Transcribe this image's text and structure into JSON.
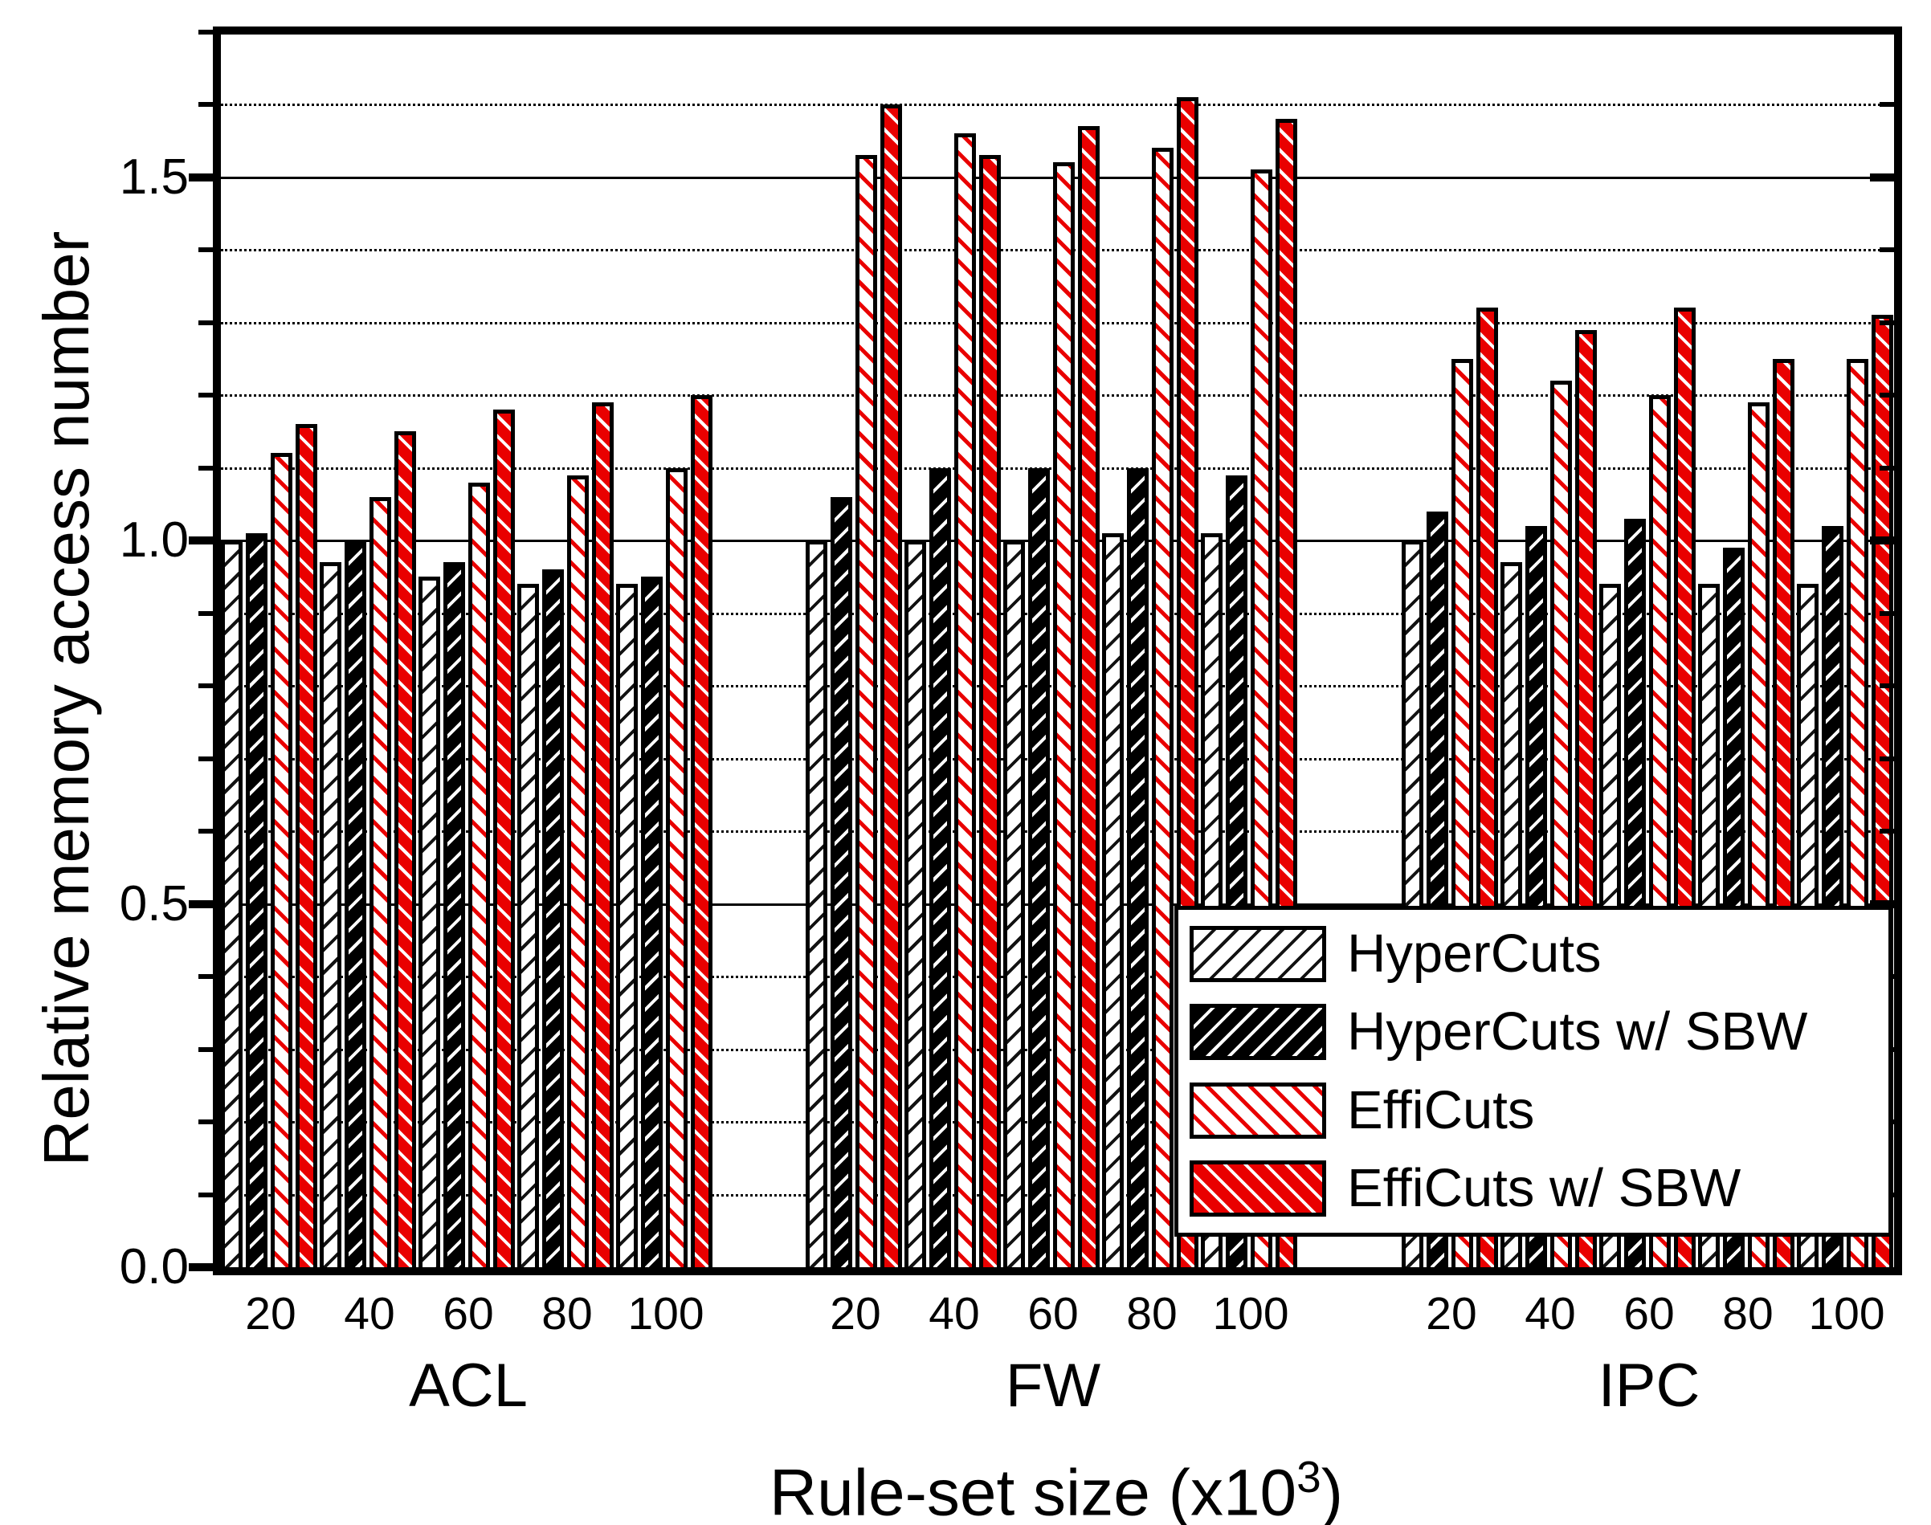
{
  "y_axis": {
    "title": "Relative memory access number",
    "tick_values": [
      0.0,
      0.5,
      1.0,
      1.5
    ],
    "tick_labels": [
      "0.0",
      "0.5",
      "1.0",
      "1.5"
    ],
    "minor_step": 0.1,
    "max": 1.7
  },
  "x_axis": {
    "title_prefix": "Rule-set size (x10",
    "title_sup": "3",
    "title_suffix": ")",
    "group_labels": [
      "ACL",
      "FW",
      "IPC"
    ],
    "tick_labels": [
      "20",
      "40",
      "60",
      "80",
      "100"
    ]
  },
  "colors": {
    "bar_red": "#e90000",
    "bar_black": "#000000",
    "background": "#ffffff",
    "text": "#000000"
  },
  "legend": {
    "items": [
      "HyperCuts",
      "HyperCuts w/ SBW",
      "EffiCuts",
      "EffiCuts w/ SBW"
    ]
  },
  "chart_data": {
    "type": "bar",
    "title": "",
    "xlabel": "Rule-set size (x10^3)",
    "ylabel": "Relative memory access number",
    "ylim": [
      0,
      1.7
    ],
    "ytick_major": [
      0.0,
      0.5,
      1.0,
      1.5
    ],
    "ytick_minor_step": 0.1,
    "grid": {
      "major": "solid",
      "minor": "dotted"
    },
    "legend_position": "inside-bottom-right",
    "groups": [
      "ACL",
      "FW",
      "IPC"
    ],
    "categories": [
      "20",
      "40",
      "60",
      "80",
      "100"
    ],
    "series": [
      {
        "name": "HyperCuts",
        "values": {
          "ACL": [
            1.0,
            0.97,
            0.95,
            0.94,
            0.94
          ],
          "FW": [
            1.0,
            1.0,
            1.0,
            1.01,
            1.01
          ],
          "IPC": [
            1.0,
            0.97,
            0.94,
            0.94,
            0.94
          ]
        }
      },
      {
        "name": "HyperCuts w/ SBW",
        "values": {
          "ACL": [
            1.01,
            1.0,
            0.97,
            0.96,
            0.95
          ],
          "FW": [
            1.06,
            1.1,
            1.1,
            1.1,
            1.09
          ],
          "IPC": [
            1.04,
            1.02,
            1.03,
            0.99,
            1.02
          ]
        }
      },
      {
        "name": "EffiCuts",
        "values": {
          "ACL": [
            1.12,
            1.06,
            1.08,
            1.09,
            1.1
          ],
          "FW": [
            1.53,
            1.56,
            1.52,
            1.54,
            1.51
          ],
          "IPC": [
            1.25,
            1.22,
            1.2,
            1.19,
            1.25
          ]
        }
      },
      {
        "name": "EffiCuts w/ SBW",
        "values": {
          "ACL": [
            1.16,
            1.15,
            1.18,
            1.19,
            1.2
          ],
          "FW": [
            1.6,
            1.53,
            1.57,
            1.61,
            1.58
          ],
          "IPC": [
            1.32,
            1.29,
            1.32,
            1.25,
            1.31
          ]
        }
      }
    ]
  }
}
